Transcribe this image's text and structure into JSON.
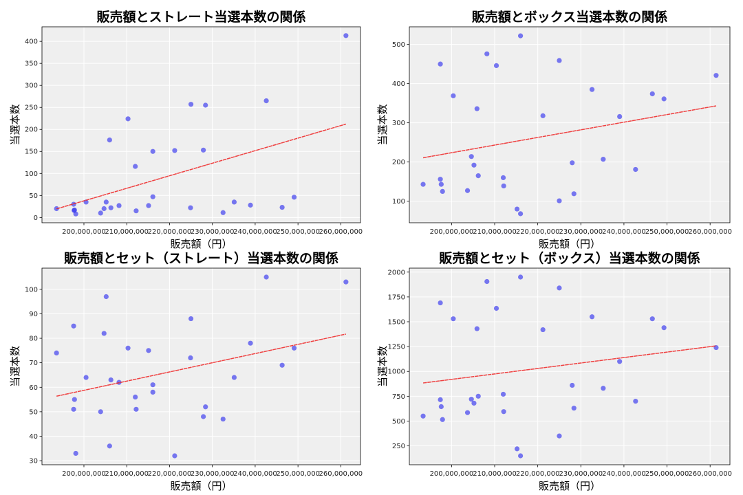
{
  "chart_data": [
    {
      "type": "scatter",
      "title": "販売額とストレート当選本数の関係",
      "xlabel": "販売額（円）",
      "ylabel": "当選本数",
      "xlim": [
        190200000,
        264600000
      ],
      "ylim": [
        -12,
        433
      ],
      "xticks": [
        200000000,
        210000000,
        220000000,
        230000000,
        240000000,
        250000000,
        260000000
      ],
      "yticks": [
        0,
        50,
        100,
        150,
        200,
        250,
        300,
        350,
        400
      ],
      "grid": true,
      "trendline": true,
      "x": [
        193600000,
        197600000,
        197700000,
        197800000,
        198100000,
        200500000,
        203900000,
        204700000,
        205200000,
        206000000,
        206300000,
        208200000,
        210300000,
        212000000,
        212200000,
        215100000,
        216100000,
        216100000,
        221200000,
        224900000,
        225000000,
        227900000,
        228400000,
        232500000,
        235100000,
        238900000,
        242600000,
        246300000,
        249100000,
        261200000
      ],
      "y": [
        20,
        30,
        16,
        17,
        8,
        35,
        10,
        20,
        35,
        176,
        22,
        27,
        224,
        116,
        15,
        27,
        150,
        47,
        152,
        22,
        257,
        153,
        255,
        11,
        35,
        28,
        265,
        23,
        46,
        413
      ]
    },
    {
      "type": "scatter",
      "title": "販売額とボックス当選本数の関係",
      "xlabel": "販売額（円）",
      "ylabel": "当選本数",
      "xlim": [
        190200000,
        264600000
      ],
      "ylim": [
        45,
        545
      ],
      "xticks": [
        200000000,
        210000000,
        220000000,
        230000000,
        240000000,
        250000000,
        260000000
      ],
      "yticks": [
        100,
        200,
        300,
        400,
        500
      ],
      "grid": true,
      "trendline": true,
      "x": [
        193400000,
        197400000,
        197400000,
        197600000,
        197900000,
        200400000,
        203700000,
        204600000,
        205200000,
        205900000,
        206200000,
        208200000,
        210400000,
        212000000,
        212100000,
        215200000,
        216000000,
        216000000,
        221200000,
        225000000,
        225000000,
        228000000,
        228400000,
        232600000,
        235200000,
        239000000,
        242700000,
        246600000,
        249300000,
        261400000
      ],
      "y": [
        143,
        450,
        156,
        143,
        125,
        369,
        127,
        214,
        192,
        336,
        165,
        476,
        446,
        160,
        139,
        80,
        522,
        68,
        318,
        459,
        101,
        198,
        119,
        385,
        207,
        316,
        181,
        374,
        361,
        421
      ]
    },
    {
      "type": "scatter",
      "title": "販売額とセット（ストレート）当選本数の関係",
      "xlabel": "販売額（円）",
      "ylabel": "当選本数",
      "xlim": [
        190200000,
        264600000
      ],
      "ylim": [
        28.35,
        108.65
      ],
      "xticks": [
        200000000,
        210000000,
        220000000,
        230000000,
        240000000,
        250000000,
        260000000
      ],
      "yticks": [
        30,
        40,
        50,
        60,
        70,
        80,
        90,
        100
      ],
      "grid": true,
      "trendline": true,
      "x": [
        193600000,
        197600000,
        197600000,
        197800000,
        198100000,
        200500000,
        203900000,
        204700000,
        205200000,
        206000000,
        206300000,
        208200000,
        210300000,
        212000000,
        212200000,
        215100000,
        216100000,
        216100000,
        221200000,
        224900000,
        225000000,
        227900000,
        228400000,
        232500000,
        235100000,
        238900000,
        242600000,
        246300000,
        249100000,
        261200000
      ],
      "y": [
        74,
        85,
        51,
        55,
        33,
        64,
        50,
        82,
        97,
        36,
        63,
        62,
        76,
        56,
        51,
        75,
        61,
        58,
        32,
        72,
        88,
        48,
        52,
        47,
        64,
        78,
        105,
        69,
        76,
        103
      ]
    },
    {
      "type": "scatter",
      "title": "販売額とセット（ボックス）当選本数の関係",
      "xlabel": "販売額（円）",
      "ylabel": "当選本数",
      "xlim": [
        190200000,
        264600000
      ],
      "ylim": [
        60,
        2040
      ],
      "xticks": [
        200000000,
        210000000,
        220000000,
        230000000,
        240000000,
        250000000,
        260000000
      ],
      "yticks": [
        250,
        500,
        750,
        1000,
        1250,
        1500,
        1750,
        2000
      ],
      "grid": true,
      "trendline": true,
      "x": [
        193400000,
        197400000,
        197400000,
        197600000,
        197900000,
        200400000,
        203700000,
        204600000,
        205200000,
        205900000,
        206200000,
        208200000,
        210400000,
        212000000,
        212100000,
        215200000,
        216000000,
        216000000,
        221200000,
        225000000,
        225000000,
        228000000,
        228400000,
        232600000,
        235200000,
        239000000,
        242700000,
        246600000,
        249300000,
        261400000
      ],
      "y": [
        550,
        1690,
        715,
        645,
        515,
        1530,
        585,
        720,
        680,
        1430,
        750,
        1905,
        1635,
        770,
        595,
        220,
        1950,
        150,
        1420,
        1840,
        350,
        860,
        630,
        1550,
        830,
        1100,
        700,
        1530,
        1440,
        1240
      ]
    }
  ],
  "colors": {
    "points": "#3333ee",
    "trendline": "#ee2222",
    "plot_bg": "#efefef",
    "grid": "#ffffff"
  }
}
